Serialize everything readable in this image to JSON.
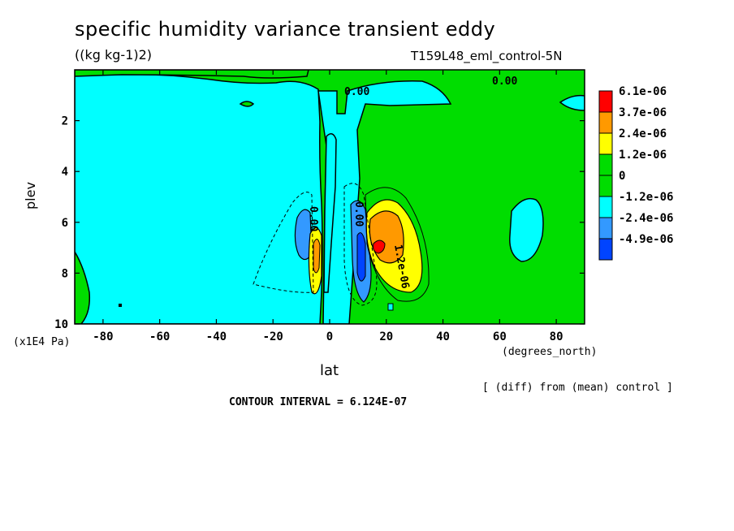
{
  "chart_data": {
    "type": "heatmap",
    "title": "specific humidity variance transient eddy",
    "units": "((kg kg-1)2)",
    "dataset": "T159L48_eml_control-5N",
    "xlabel": "lat",
    "xunit": "(degrees_north)",
    "ylabel": "plev",
    "yunit": "(x1E4 Pa)",
    "xlim": [
      -90,
      90
    ],
    "ylim": [
      0,
      10
    ],
    "y_inverted": true,
    "x_ticks": [
      -80,
      -60,
      -40,
      -20,
      0,
      20,
      40,
      60,
      80
    ],
    "y_ticks": [
      2,
      4,
      6,
      8,
      10
    ],
    "x_tick_labels": [
      "-80",
      "-60",
      "-40",
      "-20",
      "0",
      "20",
      "40",
      "60",
      "80"
    ],
    "y_tick_labels": [
      "2",
      "4",
      "6",
      "8",
      "10"
    ],
    "contour_interval_text": "CONTOUR INTERVAL = 6.124E-07",
    "note": "[ (diff) from (mean) control ]",
    "contour_labels": [
      "0.00",
      "0.00",
      "0.00",
      "1.2e-06",
      "0.00"
    ],
    "colorbar": {
      "labels": [
        "6.1e-06",
        "3.7e-06",
        "2.4e-06",
        "1.2e-06",
        "0",
        "-1.2e-06",
        "-2.4e-06",
        "-4.9e-06"
      ],
      "colors": [
        "#ff0000",
        "#ff9900",
        "#ffff00",
        "#00dd00",
        "#00dd00",
        "#00ffff",
        "#3399ff",
        "#0044ff"
      ]
    },
    "fill_colors": {
      "positive_strong": "#ff0000",
      "positive_high": "#ff9900",
      "positive_mid": "#ffff00",
      "near_zero_positive": "#00dd00",
      "near_zero_negative": "#00ffff",
      "negative_mid": "#3399ff",
      "negative_strong": "#0044ff"
    }
  }
}
